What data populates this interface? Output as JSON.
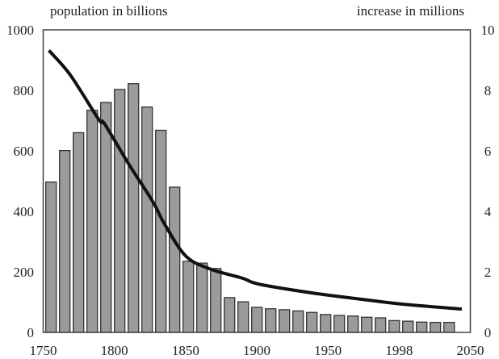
{
  "chart_data": {
    "type": "bar",
    "title": "",
    "left_axis_label": "population in billions",
    "right_axis_label": "increase in millions",
    "xlabel": "",
    "x_tick_labels": [
      "1750",
      "1800",
      "1850",
      "1900",
      "1950",
      "1998",
      "2050"
    ],
    "x_tick_values": [
      1750,
      1800,
      1850,
      1900,
      1950,
      2000,
      2050
    ],
    "xlim": [
      1750,
      2050
    ],
    "left_ylim": [
      0,
      1000
    ],
    "left_y_ticks": [
      "0",
      "200",
      "400",
      "600",
      "800",
      "1000"
    ],
    "right_ylim": [
      0,
      10
    ],
    "right_y_ticks": [
      "0",
      "2",
      "4",
      "6",
      "8",
      "10"
    ],
    "grid": false,
    "colors": {
      "bar_fill": "#9b9b9b",
      "bar_stroke": "#333333",
      "line": "#111111",
      "axis": "#444444"
    },
    "series": [
      {
        "name": "bars",
        "type": "bar",
        "axis": "left",
        "x": [
          1750,
          1760,
          1770,
          1780,
          1790,
          1800,
          1810,
          1820,
          1830,
          1840,
          1850,
          1860,
          1870,
          1880,
          1890,
          1900,
          1910,
          1920,
          1930,
          1940,
          1950,
          1960,
          1970,
          1980,
          1990,
          2000,
          2010,
          2020,
          2030,
          2040
        ],
        "values": [
          497,
          601,
          660,
          734,
          760,
          803,
          822,
          745,
          668,
          480,
          235,
          229,
          211,
          115,
          101,
          83,
          78,
          75,
          71,
          66,
          59,
          56,
          54,
          50,
          48,
          39,
          37,
          34,
          33,
          33
        ]
      },
      {
        "name": "curve",
        "type": "line",
        "axis": "right",
        "x": [
          1754,
          1769,
          1789,
          1793,
          1810,
          1827,
          1835,
          1850,
          1867,
          1890,
          1901,
          1935,
          1969,
          2003,
          2044
        ],
        "values": [
          9.32,
          8.51,
          7.04,
          6.9,
          5.57,
          4.32,
          3.6,
          2.53,
          2.1,
          1.79,
          1.6,
          1.33,
          1.12,
          0.93,
          0.77
        ]
      }
    ]
  }
}
